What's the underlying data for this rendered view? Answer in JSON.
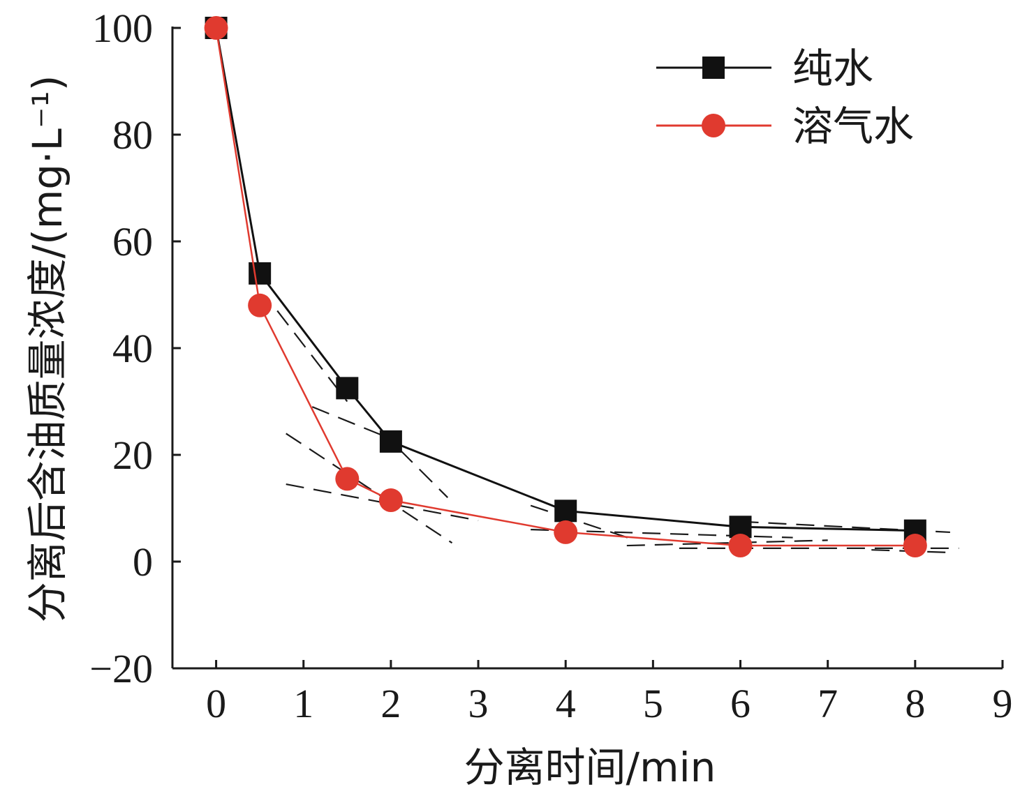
{
  "chart_data": {
    "type": "line",
    "title": "",
    "xlabel": "分离时间/min",
    "ylabel": "分离后含油质量浓度/(mg·L⁻¹)",
    "xlim": [
      -0.5,
      9
    ],
    "ylim": [
      -20,
      100
    ],
    "xticks": [
      0,
      1,
      2,
      3,
      4,
      5,
      6,
      7,
      8,
      9
    ],
    "yticks": [
      -20,
      0,
      20,
      40,
      60,
      80,
      100
    ],
    "ytick_labels": [
      "−20",
      "0",
      "20",
      "40",
      "60",
      "80",
      "100"
    ],
    "x_positions": [
      0,
      0.5,
      1.5,
      2,
      4,
      6,
      8
    ],
    "grid": false,
    "legend_position": "top-right",
    "series": [
      {
        "name": "纯水",
        "marker": "square",
        "color": "#111111",
        "x": [
          0,
          0.5,
          1.5,
          2,
          4,
          6,
          8
        ],
        "values": [
          100,
          54,
          32.5,
          22.5,
          9.5,
          6.5,
          5.8
        ]
      },
      {
        "name": "溶气水",
        "marker": "circle",
        "color": "#e03a2f",
        "x": [
          0,
          0.5,
          1.5,
          2,
          4,
          6,
          8
        ],
        "values": [
          100,
          48,
          15.5,
          11.5,
          5.5,
          3,
          3
        ]
      }
    ],
    "trend_lines": [
      {
        "x": [
          0.7,
          1.5
        ],
        "values": [
          47,
          30
        ]
      },
      {
        "x": [
          1.1,
          2.0
        ],
        "values": [
          29,
          23
        ]
      },
      {
        "x": [
          2.1,
          2.65
        ],
        "values": [
          21,
          12
        ]
      },
      {
        "x": [
          0.8,
          2.7
        ],
        "values": [
          24,
          3.5
        ]
      },
      {
        "x": [
          0.8,
          3.0
        ],
        "values": [
          14.5,
          7.7
        ]
      },
      {
        "x": [
          3.6,
          4.8
        ],
        "values": [
          10.5,
          4
        ]
      },
      {
        "x": [
          3.6,
          6.6
        ],
        "values": [
          6,
          4.5
        ]
      },
      {
        "x": [
          4.7,
          7.0
        ],
        "values": [
          3,
          4
        ]
      },
      {
        "x": [
          5.3,
          8.5
        ],
        "values": [
          2.5,
          2.5
        ]
      },
      {
        "x": [
          6.0,
          8.4
        ],
        "values": [
          7.5,
          5.5
        ]
      },
      {
        "x": [
          7.5,
          8.4
        ],
        "values": [
          2.2,
          1.7
        ]
      }
    ]
  }
}
